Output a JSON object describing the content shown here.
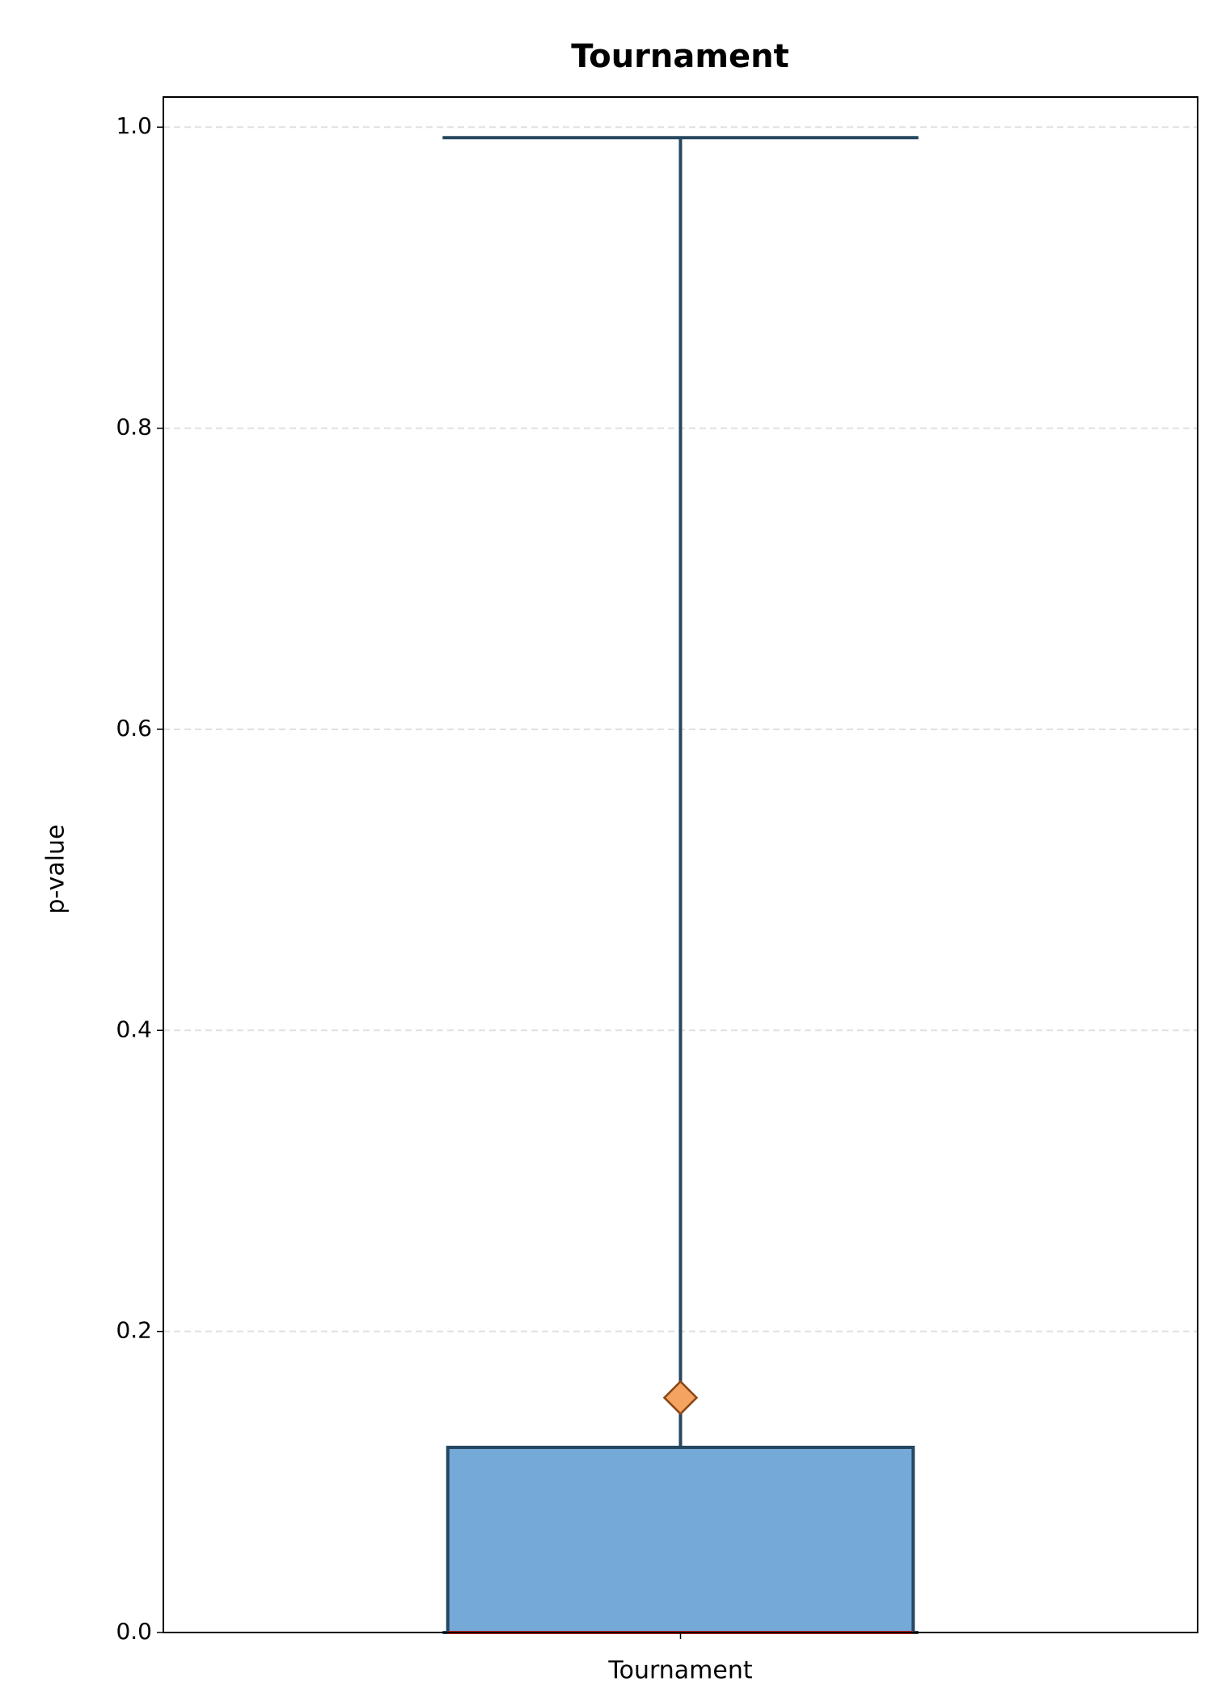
{
  "chart_data": {
    "type": "box",
    "title": "Tournament",
    "ylabel": "p-value",
    "categories": [
      "Tournament"
    ],
    "series": [
      {
        "min": 0,
        "q1": 0,
        "median": 0,
        "q3": 0.123,
        "max": 0.993,
        "mean": 0.156,
        "color": "#74a9d8",
        "edge_color": "#25475f",
        "median_color": "#b22222",
        "mean_color": "#f4a460"
      }
    ],
    "ylim": [
      0,
      1.02
    ],
    "yticks": [
      {
        "value": 0,
        "label": "0.0"
      },
      0.2,
      0.4,
      0.6,
      0.8,
      {
        "value": 1,
        "label": "1.0"
      }
    ],
    "grid": true
  }
}
